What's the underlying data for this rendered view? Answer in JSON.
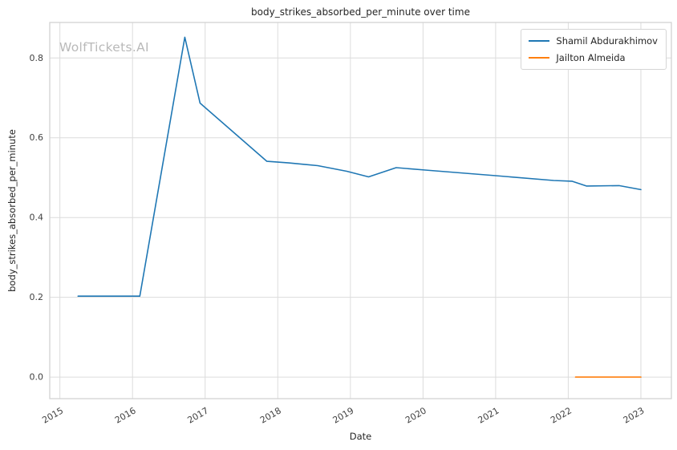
{
  "watermark": "WolfTickets.AI",
  "chart_data": {
    "type": "line",
    "title": "body_strikes_absorbed_per_minute over time",
    "xlabel": "Date",
    "ylabel": "body_strikes_absorbed_per_minute",
    "xlim": [
      2014.86,
      2023.42
    ],
    "ylim": [
      -0.054,
      0.889
    ],
    "xticks": [
      2015,
      2016,
      2017,
      2018,
      2019,
      2020,
      2021,
      2022,
      2023
    ],
    "yticks": [
      0.0,
      0.2,
      0.4,
      0.6,
      0.8
    ],
    "grid": true,
    "legend_position": "upper right",
    "colors": {
      "grid": "#dcdcdc",
      "axes_border": "#cfcfcf",
      "tick_text": "#404040",
      "series1": "#1f77b4",
      "series2": "#ff7f0e"
    },
    "series": [
      {
        "name": "Shamil Abdurakhimov",
        "color": "#1f77b4",
        "x": [
          2015.25,
          2015.7,
          2016.1,
          2016.72,
          2016.93,
          2017.85,
          2018.15,
          2018.55,
          2018.95,
          2019.25,
          2019.63,
          2020.1,
          2021.0,
          2021.8,
          2022.05,
          2022.25,
          2022.7,
          2023.0
        ],
        "y": [
          0.203,
          0.203,
          0.203,
          0.852,
          0.687,
          0.541,
          0.537,
          0.53,
          0.516,
          0.502,
          0.525,
          0.518,
          0.505,
          0.493,
          0.491,
          0.479,
          0.48,
          0.47
        ]
      },
      {
        "name": "Jailton Almeida",
        "color": "#ff7f0e",
        "x": [
          2022.1,
          2022.55,
          2023.0
        ],
        "y": [
          0.0,
          0.0,
          0.0
        ]
      }
    ]
  }
}
